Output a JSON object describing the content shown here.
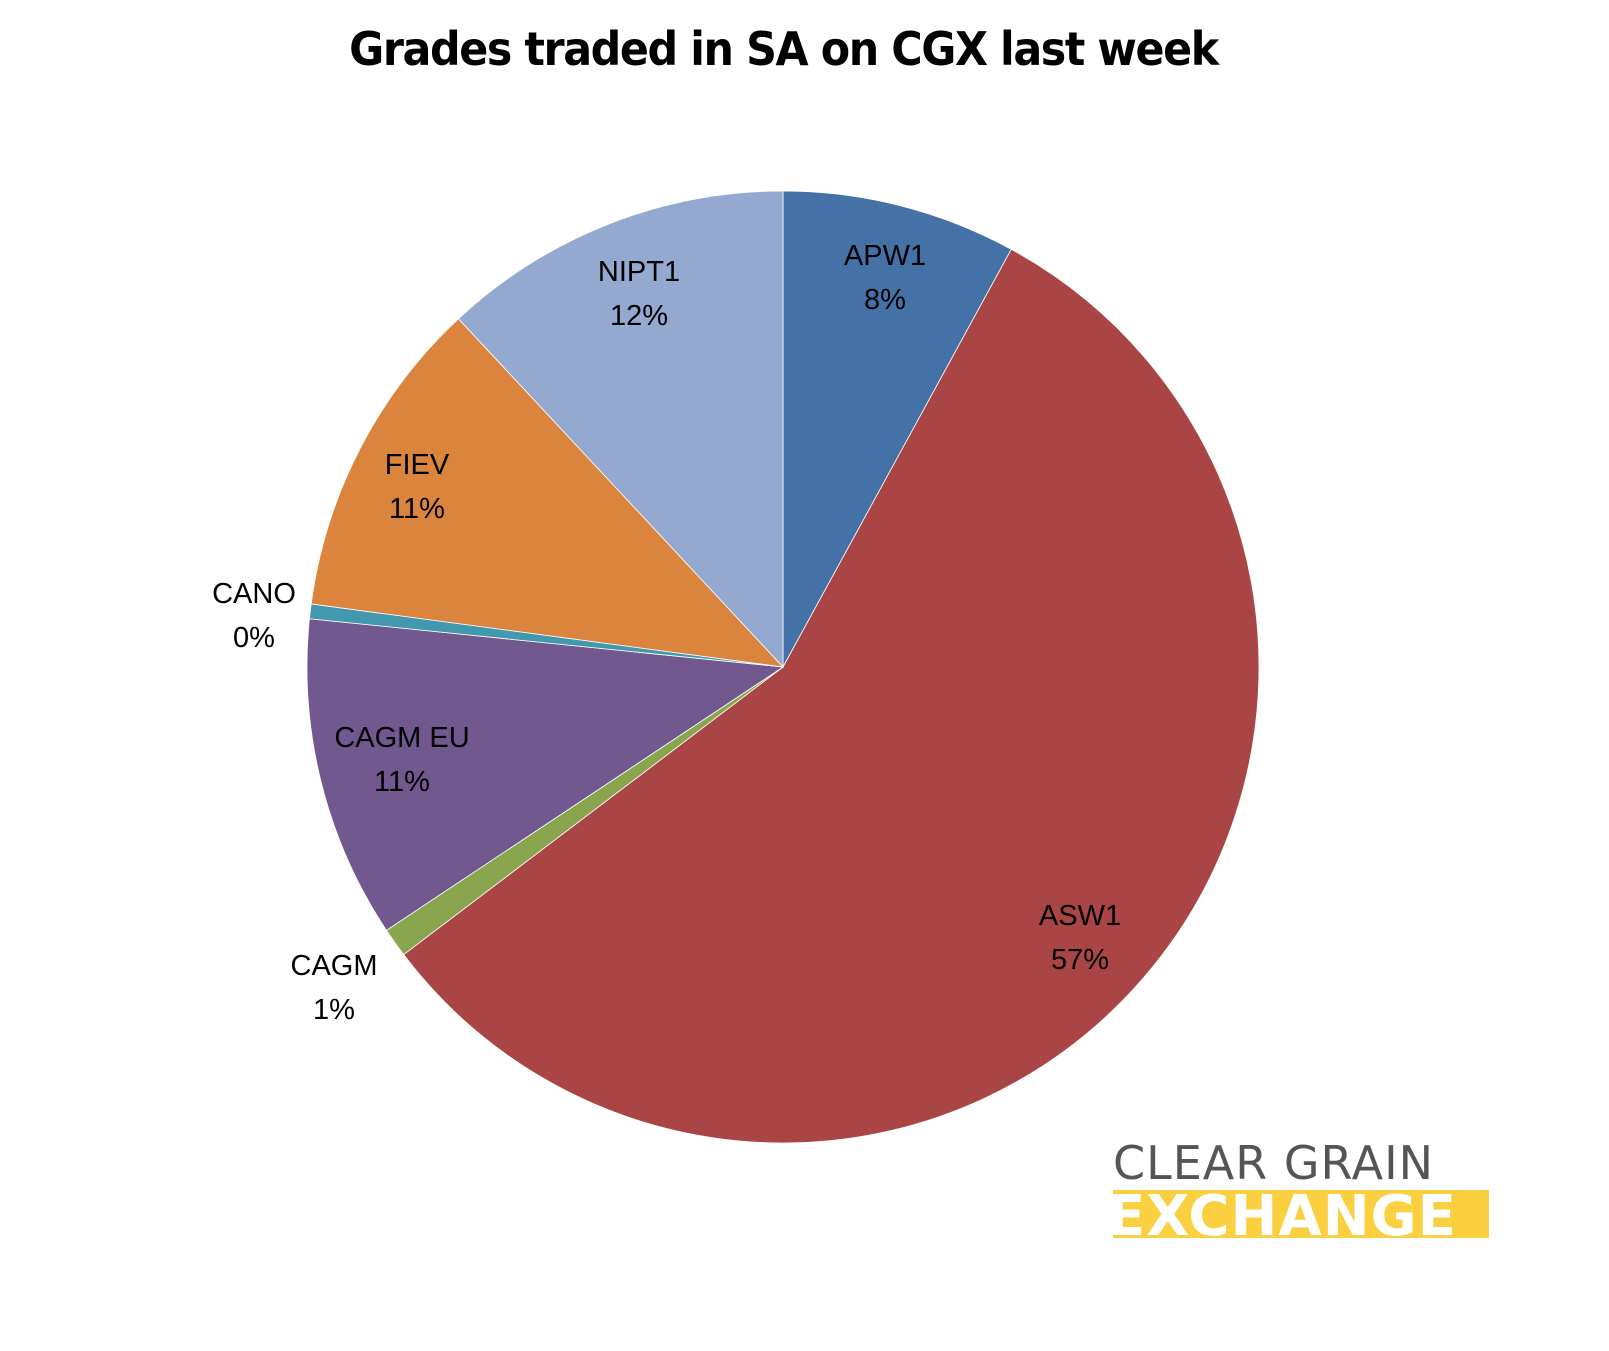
{
  "chart_data": {
    "type": "pie",
    "title": "Grades traded in SA on CGX last week",
    "start_angle_deg": 0,
    "direction": "clockwise",
    "slices": [
      {
        "label": "APW1",
        "value": 8,
        "display": "8%",
        "color": "#4471a6"
      },
      {
        "label": "ASW1",
        "value": 57,
        "display": "57%",
        "color": "#a94645"
      },
      {
        "label": "CAGM",
        "value": 1,
        "display": "1%",
        "color": "#89a54e"
      },
      {
        "label": "CAGM EU",
        "value": 11,
        "display": "11%",
        "color": "#71588f"
      },
      {
        "label": "CANO",
        "value": 0.5,
        "display": "0%",
        "color": "#4198af"
      },
      {
        "label": "FIEV",
        "value": 11,
        "display": "11%",
        "color": "#db843d"
      },
      {
        "label": "NIPT1",
        "value": 12,
        "display": "12%",
        "color": "#93a9cf"
      }
    ],
    "legend": "none",
    "data_labels": "category name and percentage"
  },
  "logo": {
    "line1": "CLEAR GRAIN",
    "line2": "EXCHANGE",
    "text_color": "#555553",
    "band_color": "#fbd040"
  }
}
